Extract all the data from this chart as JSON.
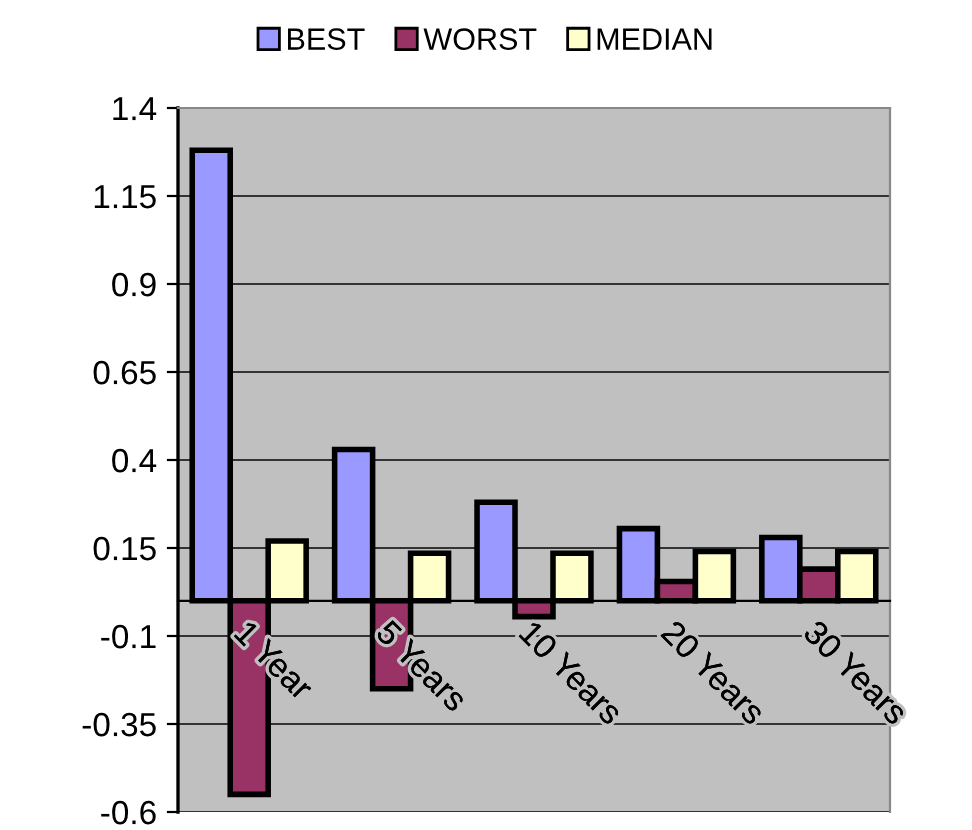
{
  "chart_data": {
    "type": "bar",
    "categories": [
      "1 Year",
      "5 Years",
      "10 Years",
      "20 Years",
      "30 Years"
    ],
    "series": [
      {
        "name": "BEST",
        "color": "#9999ff",
        "values": [
          1.28,
          0.43,
          0.28,
          0.205,
          0.18
        ]
      },
      {
        "name": "WORST",
        "color": "#993366",
        "values": [
          -0.55,
          -0.25,
          -0.045,
          0.055,
          0.09
        ]
      },
      {
        "name": "MEDIAN",
        "color": "#ffffcc",
        "values": [
          0.17,
          0.135,
          0.135,
          0.14,
          0.14
        ]
      }
    ],
    "ylim": [
      -0.6,
      1.4
    ],
    "yticks": [
      -0.6,
      -0.35,
      -0.1,
      0.15,
      0.4,
      0.65,
      0.9,
      1.15,
      1.4
    ],
    "grid": "y",
    "legend": "top"
  }
}
